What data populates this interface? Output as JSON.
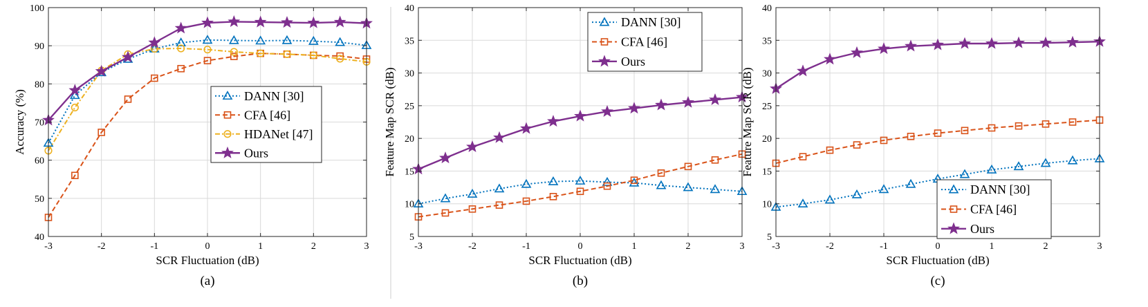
{
  "figure": {
    "separator_color": "#cccccc",
    "colors": {
      "dann": "#0072BD",
      "cfa": "#D95319",
      "hdanet": "#EDB120",
      "ours": "#7E2F8E"
    }
  },
  "chart_data": [
    {
      "type": "line",
      "caption": "(a)",
      "xlabel": "SCR Fluctuation (dB)",
      "ylabel": "Accuracy (%)",
      "xlim": [
        -3,
        3
      ],
      "ylim": [
        40,
        100
      ],
      "xticks": [
        -3,
        -2,
        -1,
        0,
        1,
        2,
        3
      ],
      "xtick_labels": [
        "-3",
        "-2",
        "-1",
        "0",
        "1",
        "2",
        "3"
      ],
      "yticks": [
        40,
        50,
        60,
        70,
        80,
        90,
        100
      ],
      "ytick_labels": [
        "40",
        "50",
        "60",
        "70",
        "80",
        "90",
        "100"
      ],
      "grid": true,
      "legend_position": "center-right",
      "x": [
        -3,
        -2.5,
        -2,
        -1.5,
        -1,
        -0.5,
        0,
        0.5,
        1,
        1.5,
        2,
        2.5,
        3
      ],
      "series": [
        {
          "name": "DANN [30]",
          "key": "dann",
          "marker": "triangle",
          "dash": "dotted",
          "values": [
            64.5,
            77,
            83,
            86.5,
            89.2,
            90.8,
            91.5,
            91.4,
            91.3,
            91.4,
            91.2,
            90.9,
            90.1
          ]
        },
        {
          "name": "CFA [46]",
          "key": "cfa",
          "marker": "square",
          "dash": "dashed",
          "values": [
            45,
            56,
            67.3,
            76,
            81.5,
            84,
            86.1,
            87.2,
            88,
            87.8,
            87.5,
            87.3,
            86.5
          ]
        },
        {
          "name": "HDANet [47]",
          "key": "hdanet",
          "marker": "circle",
          "dash": "dashdot",
          "values": [
            62.5,
            73.8,
            83.5,
            87.8,
            89.2,
            89.3,
            89,
            88.4,
            88,
            87.8,
            87.5,
            86.6,
            85.8
          ]
        },
        {
          "name": "Ours",
          "key": "ours",
          "marker": "star",
          "dash": "solid",
          "values": [
            70.5,
            78.3,
            83.3,
            87,
            90.8,
            94.6,
            96,
            96.3,
            96.2,
            96.1,
            96,
            96.2,
            95.9
          ]
        }
      ]
    },
    {
      "type": "line",
      "caption": "(b)",
      "xlabel": "SCR Fluctuation (dB)",
      "ylabel": "Feature Map SCR (dB)",
      "xlim": [
        -3,
        3
      ],
      "ylim": [
        5,
        40
      ],
      "xticks": [
        -3,
        -2,
        -1,
        0,
        1,
        2,
        3
      ],
      "xtick_labels": [
        "-3",
        "-2",
        "-1",
        "0",
        "1",
        "2",
        "3"
      ],
      "yticks": [
        5,
        10,
        15,
        20,
        25,
        30,
        35,
        40
      ],
      "ytick_labels": [
        "5",
        "10",
        "15",
        "20",
        "25",
        "30",
        "35",
        "40"
      ],
      "grid": true,
      "legend_position": "top-center",
      "x": [
        -3,
        -2.5,
        -2,
        -1.5,
        -1,
        -0.5,
        0,
        0.5,
        1,
        1.5,
        2,
        2.5,
        3
      ],
      "series": [
        {
          "name": "DANN [30]",
          "key": "dann",
          "marker": "triangle",
          "dash": "dotted",
          "values": [
            10,
            10.8,
            11.5,
            12.3,
            13,
            13.4,
            13.5,
            13.3,
            13.2,
            12.8,
            12.5,
            12.2,
            11.9
          ]
        },
        {
          "name": "CFA [46]",
          "key": "cfa",
          "marker": "square",
          "dash": "dashed",
          "values": [
            8,
            8.6,
            9.2,
            9.8,
            10.4,
            11.1,
            11.9,
            12.7,
            13.6,
            14.7,
            15.7,
            16.7,
            17.6
          ]
        },
        {
          "name": "Ours",
          "key": "ours",
          "marker": "star",
          "dash": "solid",
          "values": [
            15.3,
            17,
            18.7,
            20.1,
            21.5,
            22.6,
            23.4,
            24.1,
            24.6,
            25.1,
            25.5,
            25.9,
            26.3
          ]
        }
      ]
    },
    {
      "type": "line",
      "caption": "(c)",
      "xlabel": "SCR Fluctuation (dB)",
      "ylabel": "Feature Map SCR (dB)",
      "xlim": [
        -3,
        3
      ],
      "ylim": [
        5,
        40
      ],
      "xticks": [
        -3,
        -2,
        -1,
        0,
        1,
        2,
        3
      ],
      "xtick_labels": [
        "-3",
        "-2",
        "-1",
        "0",
        "1",
        "2",
        "3"
      ],
      "yticks": [
        5,
        10,
        15,
        20,
        25,
        30,
        35,
        40
      ],
      "ytick_labels": [
        "5",
        "10",
        "15",
        "20",
        "25",
        "30",
        "35",
        "40"
      ],
      "grid": true,
      "legend_position": "bottom-right",
      "x": [
        -3,
        -2.5,
        -2,
        -1.5,
        -1,
        -0.5,
        0,
        0.5,
        1,
        1.5,
        2,
        2.5,
        3
      ],
      "series": [
        {
          "name": "DANN [30]",
          "key": "dann",
          "marker": "triangle",
          "dash": "dotted",
          "values": [
            9.5,
            10,
            10.6,
            11.4,
            12.2,
            13,
            13.8,
            14.5,
            15.2,
            15.7,
            16.2,
            16.6,
            16.9
          ]
        },
        {
          "name": "CFA [46]",
          "key": "cfa",
          "marker": "square",
          "dash": "dashed",
          "values": [
            16.2,
            17.2,
            18.2,
            19,
            19.7,
            20.3,
            20.8,
            21.2,
            21.6,
            21.9,
            22.2,
            22.5,
            22.8
          ]
        },
        {
          "name": "Ours",
          "key": "ours",
          "marker": "star",
          "dash": "solid",
          "values": [
            27.6,
            30.3,
            32.1,
            33.1,
            33.7,
            34.1,
            34.3,
            34.5,
            34.5,
            34.6,
            34.6,
            34.7,
            34.8
          ]
        }
      ]
    }
  ]
}
